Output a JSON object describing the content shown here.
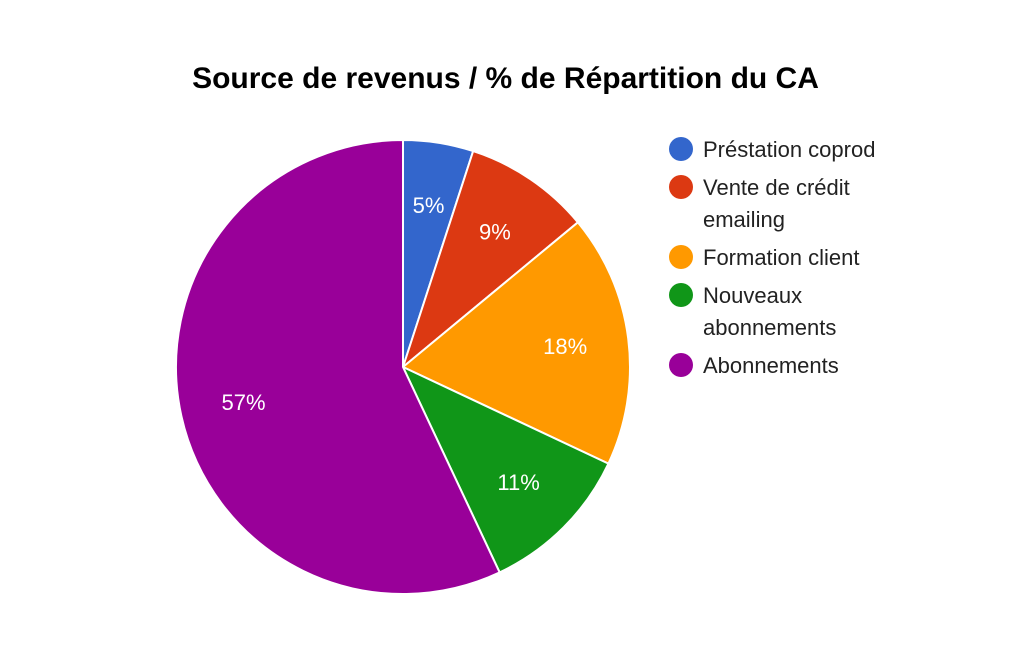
{
  "chart_data": {
    "type": "pie",
    "title": "Source de revenus / % de Répartition du CA",
    "slices": [
      {
        "label": "Préstation coprod",
        "legend_lines": [
          "Préstation coprod"
        ],
        "value": 5,
        "display": "5%",
        "color": "#3366cc"
      },
      {
        "label": "Vente de crédit emailing",
        "legend_lines": [
          "Vente de crédit",
          "emailing"
        ],
        "value": 9,
        "display": "9%",
        "color": "#dc3912"
      },
      {
        "label": "Formation client",
        "legend_lines": [
          "Formation client"
        ],
        "value": 18,
        "display": "18%",
        "color": "#ff9900"
      },
      {
        "label": "Nouveaux abonnements",
        "legend_lines": [
          "Nouveaux",
          "abonnements"
        ],
        "value": 11,
        "display": "11%",
        "color": "#109618"
      },
      {
        "label": "Abonnements",
        "legend_lines": [
          "Abonnements"
        ],
        "value": 57,
        "display": "57%",
        "color": "#990099"
      }
    ],
    "legend_position": "right"
  }
}
